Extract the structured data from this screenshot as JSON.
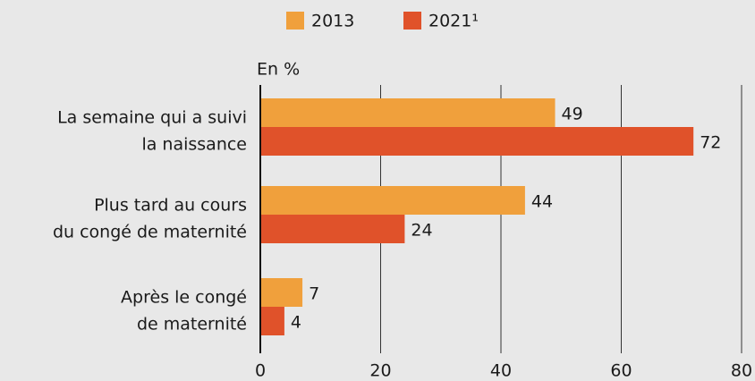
{
  "chart_data": {
    "type": "bar",
    "orientation": "horizontal",
    "axis_label": "En %",
    "categories": [
      [
        "La semaine qui a suivi",
        "la naissance"
      ],
      [
        "Plus tard au cours",
        "du congé de maternité"
      ],
      [
        "Après le congé",
        "de maternité"
      ]
    ],
    "series": [
      {
        "name": "2013",
        "color": "#f0a03c",
        "values": [
          49,
          44,
          7
        ]
      },
      {
        "name": "2021¹",
        "color": "#e0522a",
        "values": [
          72,
          24,
          4
        ]
      }
    ],
    "xlim": [
      0,
      80
    ],
    "xticks": [
      0,
      20,
      40,
      60,
      80
    ],
    "grid": true
  }
}
